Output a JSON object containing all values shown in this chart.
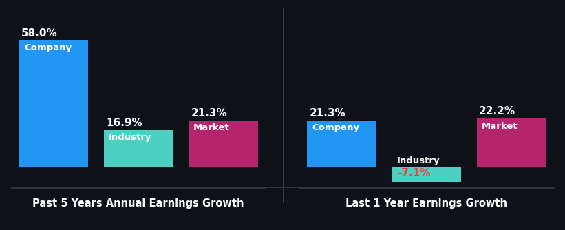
{
  "background_color": "#0e1117",
  "left_title": "Past 5 Years Annual Earnings Growth",
  "right_title": "Last 1 Year Earnings Growth",
  "left_bars": [
    {
      "label": "Company",
      "value": 58.0,
      "color": "#2196f3"
    },
    {
      "label": "Industry",
      "value": 16.9,
      "color": "#4dd0c4"
    },
    {
      "label": "Market",
      "value": 21.3,
      "color": "#b5256e"
    }
  ],
  "right_bars": [
    {
      "label": "Company",
      "value": 21.3,
      "color": "#2196f3"
    },
    {
      "label": "Industry",
      "value": -7.1,
      "color": "#4dd0c4"
    },
    {
      "label": "Market",
      "value": 22.2,
      "color": "#b5256e"
    }
  ],
  "text_color": "#ffffff",
  "negative_label_color": "#ff3333",
  "axis_line_color": "#3a3a4a",
  "label_fontsize": 9.5,
  "value_fontsize": 11,
  "title_fontsize": 10.5
}
